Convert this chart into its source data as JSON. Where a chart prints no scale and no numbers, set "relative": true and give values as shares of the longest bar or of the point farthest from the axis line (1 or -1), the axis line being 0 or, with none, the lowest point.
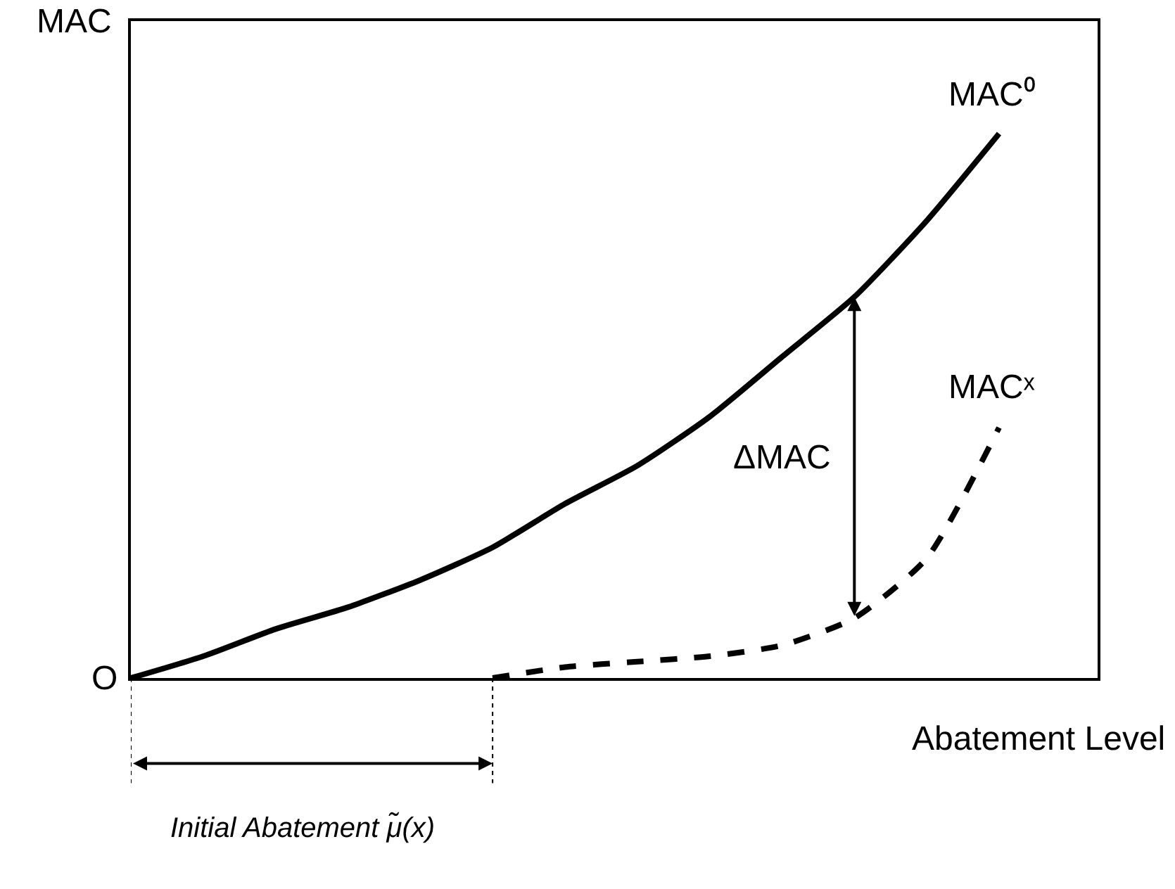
{
  "chart_data": {
    "type": "line",
    "relative": true,
    "xlabel": "Abatement Level",
    "ylabel": "MAC",
    "categories": [
      null,
      null,
      null,
      null,
      null,
      null,
      null,
      null,
      null,
      null,
      null,
      null,
      null
    ],
    "series": [
      {
        "name": "MAC⁰",
        "color": "#000000",
        "line_style": "solid",
        "values": [
          0,
          0.04,
          0.09,
          0.13,
          0.18,
          0.24,
          0.32,
          0.39,
          0.48,
          0.59,
          0.7,
          0.84,
          1
        ]
      },
      {
        "name": "MACˣ",
        "color": "#000000",
        "line_style": "dashed",
        "values": [
          null,
          null,
          null,
          null,
          null,
          0,
          0.02,
          0.03,
          0.04,
          0.06,
          0.11,
          0.22,
          0.46
        ]
      }
    ],
    "annotations": [
      "O",
      "ΔMAC",
      "Initial Abatement μ̃(x)"
    ],
    "legend": false,
    "marker": "none",
    "tick_labels": false
  }
}
